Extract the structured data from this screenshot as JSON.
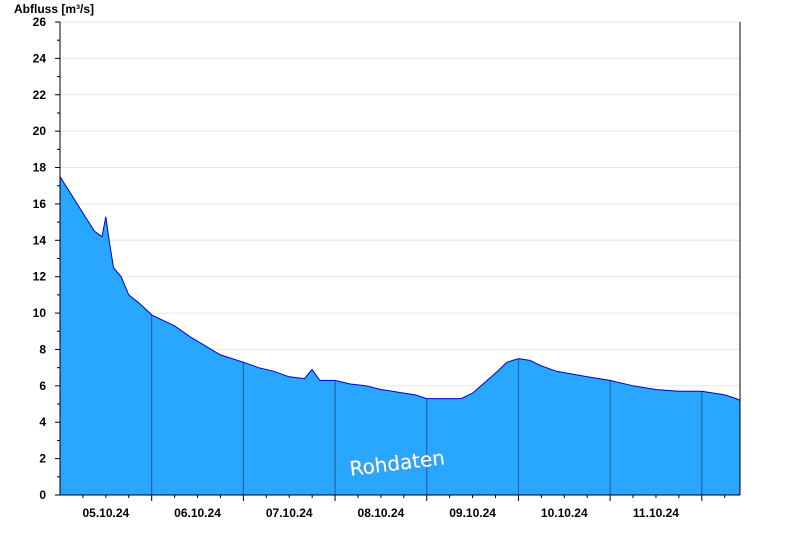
{
  "chart_data": {
    "type": "area",
    "ylabel": "Abfluss [m³/s]",
    "ylim": [
      0,
      26
    ],
    "y_ticks": [
      "0",
      "2",
      "4",
      "6",
      "8",
      "10",
      "12",
      "14",
      "16",
      "18",
      "20",
      "22",
      "24",
      "26"
    ],
    "x_range": [
      "2024-10-04T12:00",
      "2024-10-11T22:00"
    ],
    "x_tick_labels": [
      "05.10.24",
      "06.10.24",
      "07.10.24",
      "08.10.24",
      "09.10.24",
      "10.10.24",
      "11.10.24"
    ],
    "day_boundaries": [
      "2024-10-05T12:00",
      "2024-10-06T12:00",
      "2024-10-07T12:00",
      "2024-10-08T12:00",
      "2024-10-09T12:00",
      "2024-10-10T12:00",
      "2024-10-11T12:00"
    ],
    "grid": true,
    "watermark": "Rohdaten",
    "colors": {
      "fill": "#29a6fe",
      "line": "#0000cc",
      "grid": "#e6e6e6",
      "day_line": "#1a5a9a"
    },
    "series": [
      {
        "x": [
          "2024-10-04T12:00",
          "2024-10-04T15:00",
          "2024-10-04T18:00",
          "2024-10-04T21:00",
          "2024-10-04T23:00",
          "2024-10-05T00:00",
          "2024-10-05T01:00",
          "2024-10-05T02:00",
          "2024-10-05T04:00",
          "2024-10-05T06:00",
          "2024-10-05T09:00",
          "2024-10-05T12:00",
          "2024-10-05T15:00",
          "2024-10-05T18:00",
          "2024-10-05T22:00",
          "2024-10-06T02:00",
          "2024-10-06T06:00",
          "2024-10-06T12:00",
          "2024-10-06T16:00",
          "2024-10-06T20:00",
          "2024-10-07T00:00",
          "2024-10-07T04:00",
          "2024-10-07T06:00",
          "2024-10-07T08:00",
          "2024-10-07T12:00",
          "2024-10-07T16:00",
          "2024-10-07T20:00",
          "2024-10-08T00:00",
          "2024-10-08T03:00",
          "2024-10-08T06:00",
          "2024-10-08T09:00",
          "2024-10-08T12:00",
          "2024-10-08T15:00",
          "2024-10-08T18:00",
          "2024-10-08T21:00",
          "2024-10-09T00:00",
          "2024-10-09T06:00",
          "2024-10-09T09:00",
          "2024-10-09T12:00",
          "2024-10-09T15:00",
          "2024-10-09T18:00",
          "2024-10-09T22:00",
          "2024-10-10T06:00",
          "2024-10-10T12:00",
          "2024-10-10T18:00",
          "2024-10-11T00:00",
          "2024-10-11T06:00",
          "2024-10-11T12:00",
          "2024-10-11T18:00",
          "2024-10-11T21:00",
          "2024-10-11T22:00"
        ],
        "y": [
          17.5,
          16.5,
          15.5,
          14.5,
          14.2,
          15.3,
          13.8,
          12.5,
          12.0,
          11.0,
          10.5,
          9.9,
          9.6,
          9.3,
          8.7,
          8.2,
          7.7,
          7.3,
          7.0,
          6.8,
          6.5,
          6.4,
          6.9,
          6.3,
          6.3,
          6.1,
          6.0,
          5.8,
          5.7,
          5.6,
          5.5,
          5.3,
          5.3,
          5.3,
          5.3,
          5.6,
          6.7,
          7.3,
          7.5,
          7.4,
          7.1,
          6.8,
          6.5,
          6.3,
          6.0,
          5.8,
          5.7,
          5.7,
          5.5,
          5.3,
          5.2
        ]
      }
    ]
  }
}
